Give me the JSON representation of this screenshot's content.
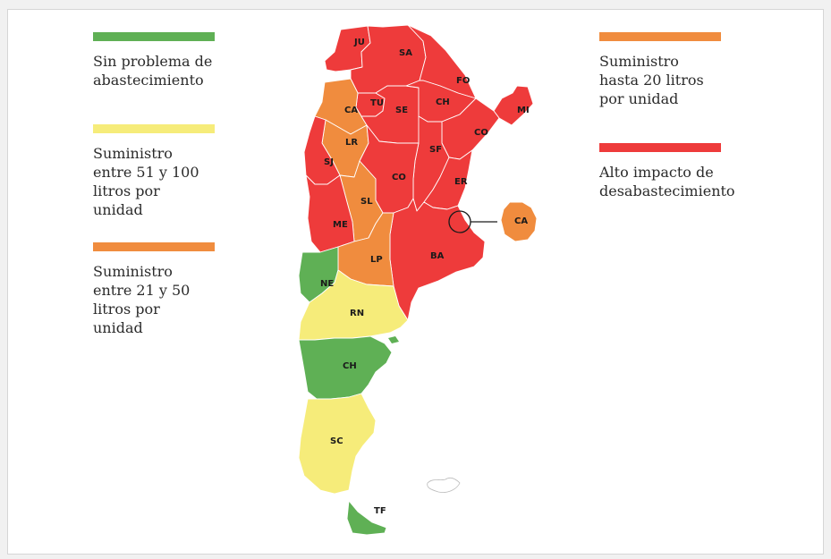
{
  "colors": {
    "green": "#5fb055",
    "yellow": "#f6ec7a",
    "orange": "#f08c3e",
    "red": "#ee3b3b"
  },
  "legend": [
    {
      "color": "green",
      "label": "Sin problema de\nabastecimiento"
    },
    {
      "color": "yellow",
      "label": "Suministro\nentre 51 y 100\nlitros por\nunidad"
    },
    {
      "color": "orange",
      "label": "Suministro\nentre 21 y 50\nlitros por\nunidad"
    },
    {
      "color": "orange",
      "label": "Suministro\nhasta 20 litros\npor unidad"
    },
    {
      "color": "red",
      "label": "Alto impacto de\ndesabastecimiento"
    }
  ],
  "provinces": [
    {
      "code": "JU",
      "status": "red"
    },
    {
      "code": "SA",
      "status": "red"
    },
    {
      "code": "FO",
      "status": "red"
    },
    {
      "code": "MI",
      "status": "red"
    },
    {
      "code": "TU",
      "status": "red"
    },
    {
      "code": "CA",
      "status": "orange"
    },
    {
      "code": "SE",
      "status": "red"
    },
    {
      "code": "CH",
      "status": "red"
    },
    {
      "code": "CO",
      "status": "red",
      "region": "Corrientes"
    },
    {
      "code": "LR",
      "status": "orange"
    },
    {
      "code": "SF",
      "status": "red"
    },
    {
      "code": "SJ",
      "status": "red"
    },
    {
      "code": "CO",
      "status": "red",
      "region": "Córdoba"
    },
    {
      "code": "ER",
      "status": "red"
    },
    {
      "code": "SL",
      "status": "orange"
    },
    {
      "code": "ME",
      "status": "red"
    },
    {
      "code": "CA",
      "status": "orange",
      "region": "CABA"
    },
    {
      "code": "BA",
      "status": "red"
    },
    {
      "code": "LP",
      "status": "orange"
    },
    {
      "code": "NE",
      "status": "green"
    },
    {
      "code": "RN",
      "status": "yellow"
    },
    {
      "code": "CH",
      "status": "green",
      "region": "Chubut"
    },
    {
      "code": "SC",
      "status": "yellow"
    },
    {
      "code": "TF",
      "status": "green"
    }
  ]
}
